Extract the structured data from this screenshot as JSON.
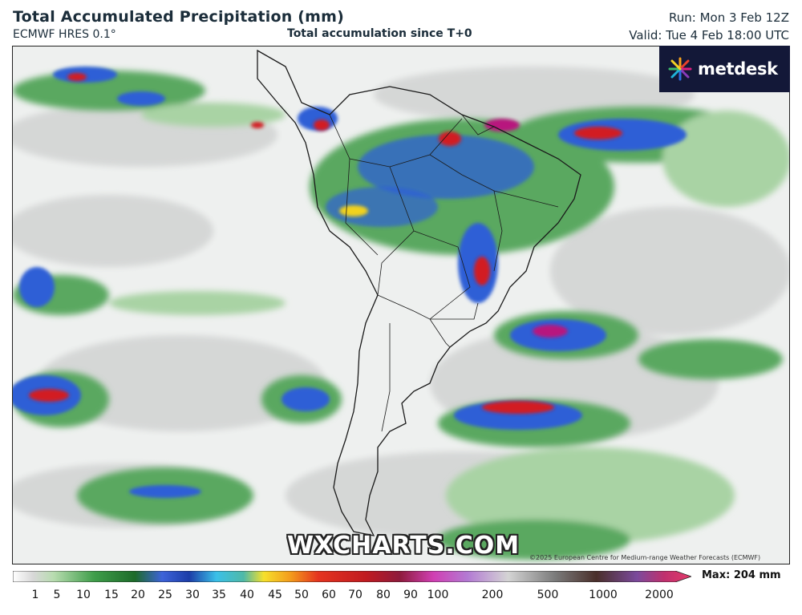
{
  "header": {
    "title": "Total Accumulated Precipitation (mm)",
    "model": "ECMWF HRES 0.1°",
    "accumulation": "Total accumulation since T+0",
    "run": "Run: Mon 3 Feb 12Z",
    "valid": "Valid: Tue 4 Feb 18:00 UTC"
  },
  "logo": {
    "text": "metdesk",
    "icon": "burst-logo-icon"
  },
  "map": {
    "region": "South America",
    "colors": {
      "ocean_base": "#eef0ef",
      "light_precip": "#d4d6d5",
      "green": "#5aa860",
      "green_light": "#a9d3a4",
      "blue": "#2d5fd6",
      "yellow": "#f2d21c",
      "red": "#d21a22",
      "magenta": "#b8167e",
      "border": "#1a1a1a"
    }
  },
  "watermark": "WXCHARTS.COM",
  "copyright": "©2025 European Centre for Medium-range Weather Forecasts (ECMWF)",
  "scale": {
    "tick_labels": [
      "1",
      "5",
      "10",
      "15",
      "20",
      "25",
      "30",
      "35",
      "40",
      "45",
      "50",
      "60",
      "70",
      "80",
      "90",
      "100",
      "200",
      "500",
      "1000",
      "2000"
    ],
    "max_label": "Max: 204 mm"
  }
}
